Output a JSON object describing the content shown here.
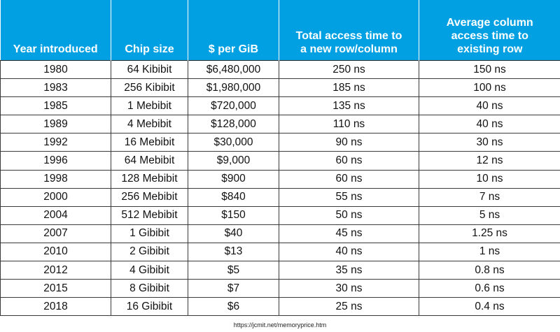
{
  "table": {
    "headers": [
      [
        "Year introduced"
      ],
      [
        "Chip size"
      ],
      [
        "$ per GiB"
      ],
      [
        "Total access time to",
        "a new row/column"
      ],
      [
        "Average column",
        "access time to",
        "existing row"
      ]
    ],
    "rows": [
      [
        "1980",
        "64 Kibibit",
        "$6,480,000",
        "250 ns",
        "150 ns"
      ],
      [
        "1983",
        "256 Kibibit",
        "$1,980,000",
        "185 ns",
        "100 ns"
      ],
      [
        "1985",
        "1 Mebibit",
        "$720,000",
        "135 ns",
        "40 ns"
      ],
      [
        "1989",
        "4 Mebibit",
        "$128,000",
        "110 ns",
        "40 ns"
      ],
      [
        "1992",
        "16 Mebibit",
        "$30,000",
        "90 ns",
        "30 ns"
      ],
      [
        "1996",
        "64 Mebibit",
        "$9,000",
        "60 ns",
        "12 ns"
      ],
      [
        "1998",
        "128 Mebibit",
        "$900",
        "60 ns",
        "10 ns"
      ],
      [
        "2000",
        "256 Mebibit",
        "$840",
        "55 ns",
        "7 ns"
      ],
      [
        "2004",
        "512 Mebibit",
        "$150",
        "50 ns",
        "5 ns"
      ],
      [
        "2007",
        "1 Gibibit",
        "$40",
        "45 ns",
        "1.25 ns"
      ],
      [
        "2010",
        "2 Gibibit",
        "$13",
        "40 ns",
        "1 ns"
      ],
      [
        "2012",
        "4 Gibibit",
        "$5",
        "35 ns",
        "0.8 ns"
      ],
      [
        "2015",
        "8 Gibibit",
        "$7",
        "30 ns",
        "0.6 ns"
      ],
      [
        "2018",
        "16 Gibibit",
        "$6",
        "25 ns",
        "0.4 ns"
      ]
    ]
  },
  "source": "https://jcmit.net/memoryprice.htm",
  "colors": {
    "header_bg": "#00A0E3",
    "header_text": "#ffffff",
    "grid_lines": "#3a3a3a"
  }
}
